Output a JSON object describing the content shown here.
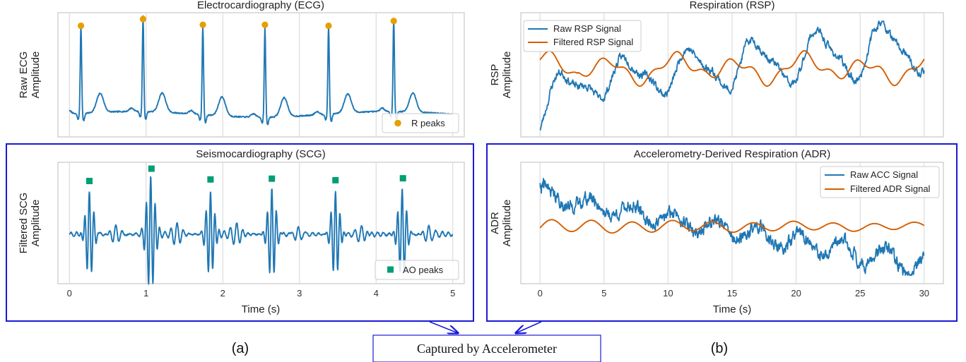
{
  "figure": {
    "label_a": "(a)",
    "label_b": "(b)",
    "caption": "Captured by Accelerometer",
    "colors": {
      "raw": "#1f77b4",
      "filtered": "#d55e00",
      "r_peak": "#e69f00",
      "ao_peak": "#009e73",
      "box": "#1a1ad6",
      "grid": "#d9d9d9"
    }
  },
  "chart_data": [
    {
      "id": "ecg",
      "type": "line",
      "title": "Electrocardiography (ECG)",
      "ylabel": [
        "Raw ECG",
        "Amplitude"
      ],
      "xlabel": "",
      "xlim": [
        -0.15,
        5.15
      ],
      "xticks": [
        0,
        1,
        2,
        3,
        4,
        5
      ],
      "show_xtick_labels": false,
      "grid": true,
      "legend_position": "bottom-right",
      "series": [
        {
          "kind": "ecg",
          "t0": 0.15,
          "rr": 0.82,
          "n_beats": 6,
          "duration": 5.0,
          "samples": 1000
        },
        {
          "name": "R peaks",
          "kind": "markers",
          "marker": "circle",
          "x": [
            0.15,
            0.96,
            1.74,
            2.55,
            3.38,
            4.23
          ],
          "y": [
            0.93,
            1.0,
            0.94,
            0.94,
            0.93,
            0.98
          ]
        }
      ]
    },
    {
      "id": "scg",
      "type": "line",
      "title": "Seismocardiography (SCG)",
      "ylabel": [
        "Filtered SCG",
        "Amplitude"
      ],
      "xlabel": "Time (s)",
      "xlim": [
        -0.15,
        5.15
      ],
      "xticks": [
        0,
        1,
        2,
        3,
        4,
        5
      ],
      "xtick_labels": [
        "0",
        "1",
        "2",
        "3",
        "4",
        "5"
      ],
      "grid": true,
      "legend_position": "bottom-right",
      "series": [
        {
          "kind": "scg",
          "beats": [
            0.25,
            1.05,
            1.83,
            2.63,
            3.46,
            4.33
          ],
          "duration": 5.0,
          "samples": 1200
        },
        {
          "name": "AO peaks",
          "kind": "markers",
          "marker": "square",
          "x": [
            0.26,
            1.07,
            1.84,
            2.64,
            3.47,
            4.35
          ],
          "y": [
            0.68,
            1.0,
            0.72,
            0.74,
            0.7,
            0.75
          ]
        }
      ]
    },
    {
      "id": "rsp",
      "type": "line",
      "title": "Respiration (RSP)",
      "ylabel": [
        "RSP",
        "Amplitude"
      ],
      "xlabel": "",
      "xlim": [
        -1.5,
        31.5
      ],
      "xticks": [
        0,
        5,
        10,
        15,
        20,
        25,
        30
      ],
      "show_xtick_labels": false,
      "grid": true,
      "legend_position": "top-left",
      "series": [
        {
          "name": "Raw RSP Signal",
          "kind": "raw",
          "color_key": "raw"
        },
        {
          "name": "Filtered RSP Signal",
          "kind": "filtered",
          "color_key": "filtered"
        }
      ]
    },
    {
      "id": "adr",
      "type": "line",
      "title": "Accelerometry-Derived Respiration (ADR)",
      "ylabel": [
        "ADR",
        "Amplitude"
      ],
      "xlabel": "Time (s)",
      "xlim": [
        -1.5,
        31.5
      ],
      "xticks": [
        0,
        5,
        10,
        15,
        20,
        25,
        30
      ],
      "xtick_labels": [
        "0",
        "5",
        "10",
        "15",
        "20",
        "25",
        "30"
      ],
      "grid": true,
      "legend_position": "top-right",
      "series": [
        {
          "name": "Raw ACC Signal",
          "kind": "raw",
          "color_key": "raw"
        },
        {
          "name": "Filtered ADR Signal",
          "kind": "filtered",
          "color_key": "filtered"
        }
      ]
    }
  ]
}
